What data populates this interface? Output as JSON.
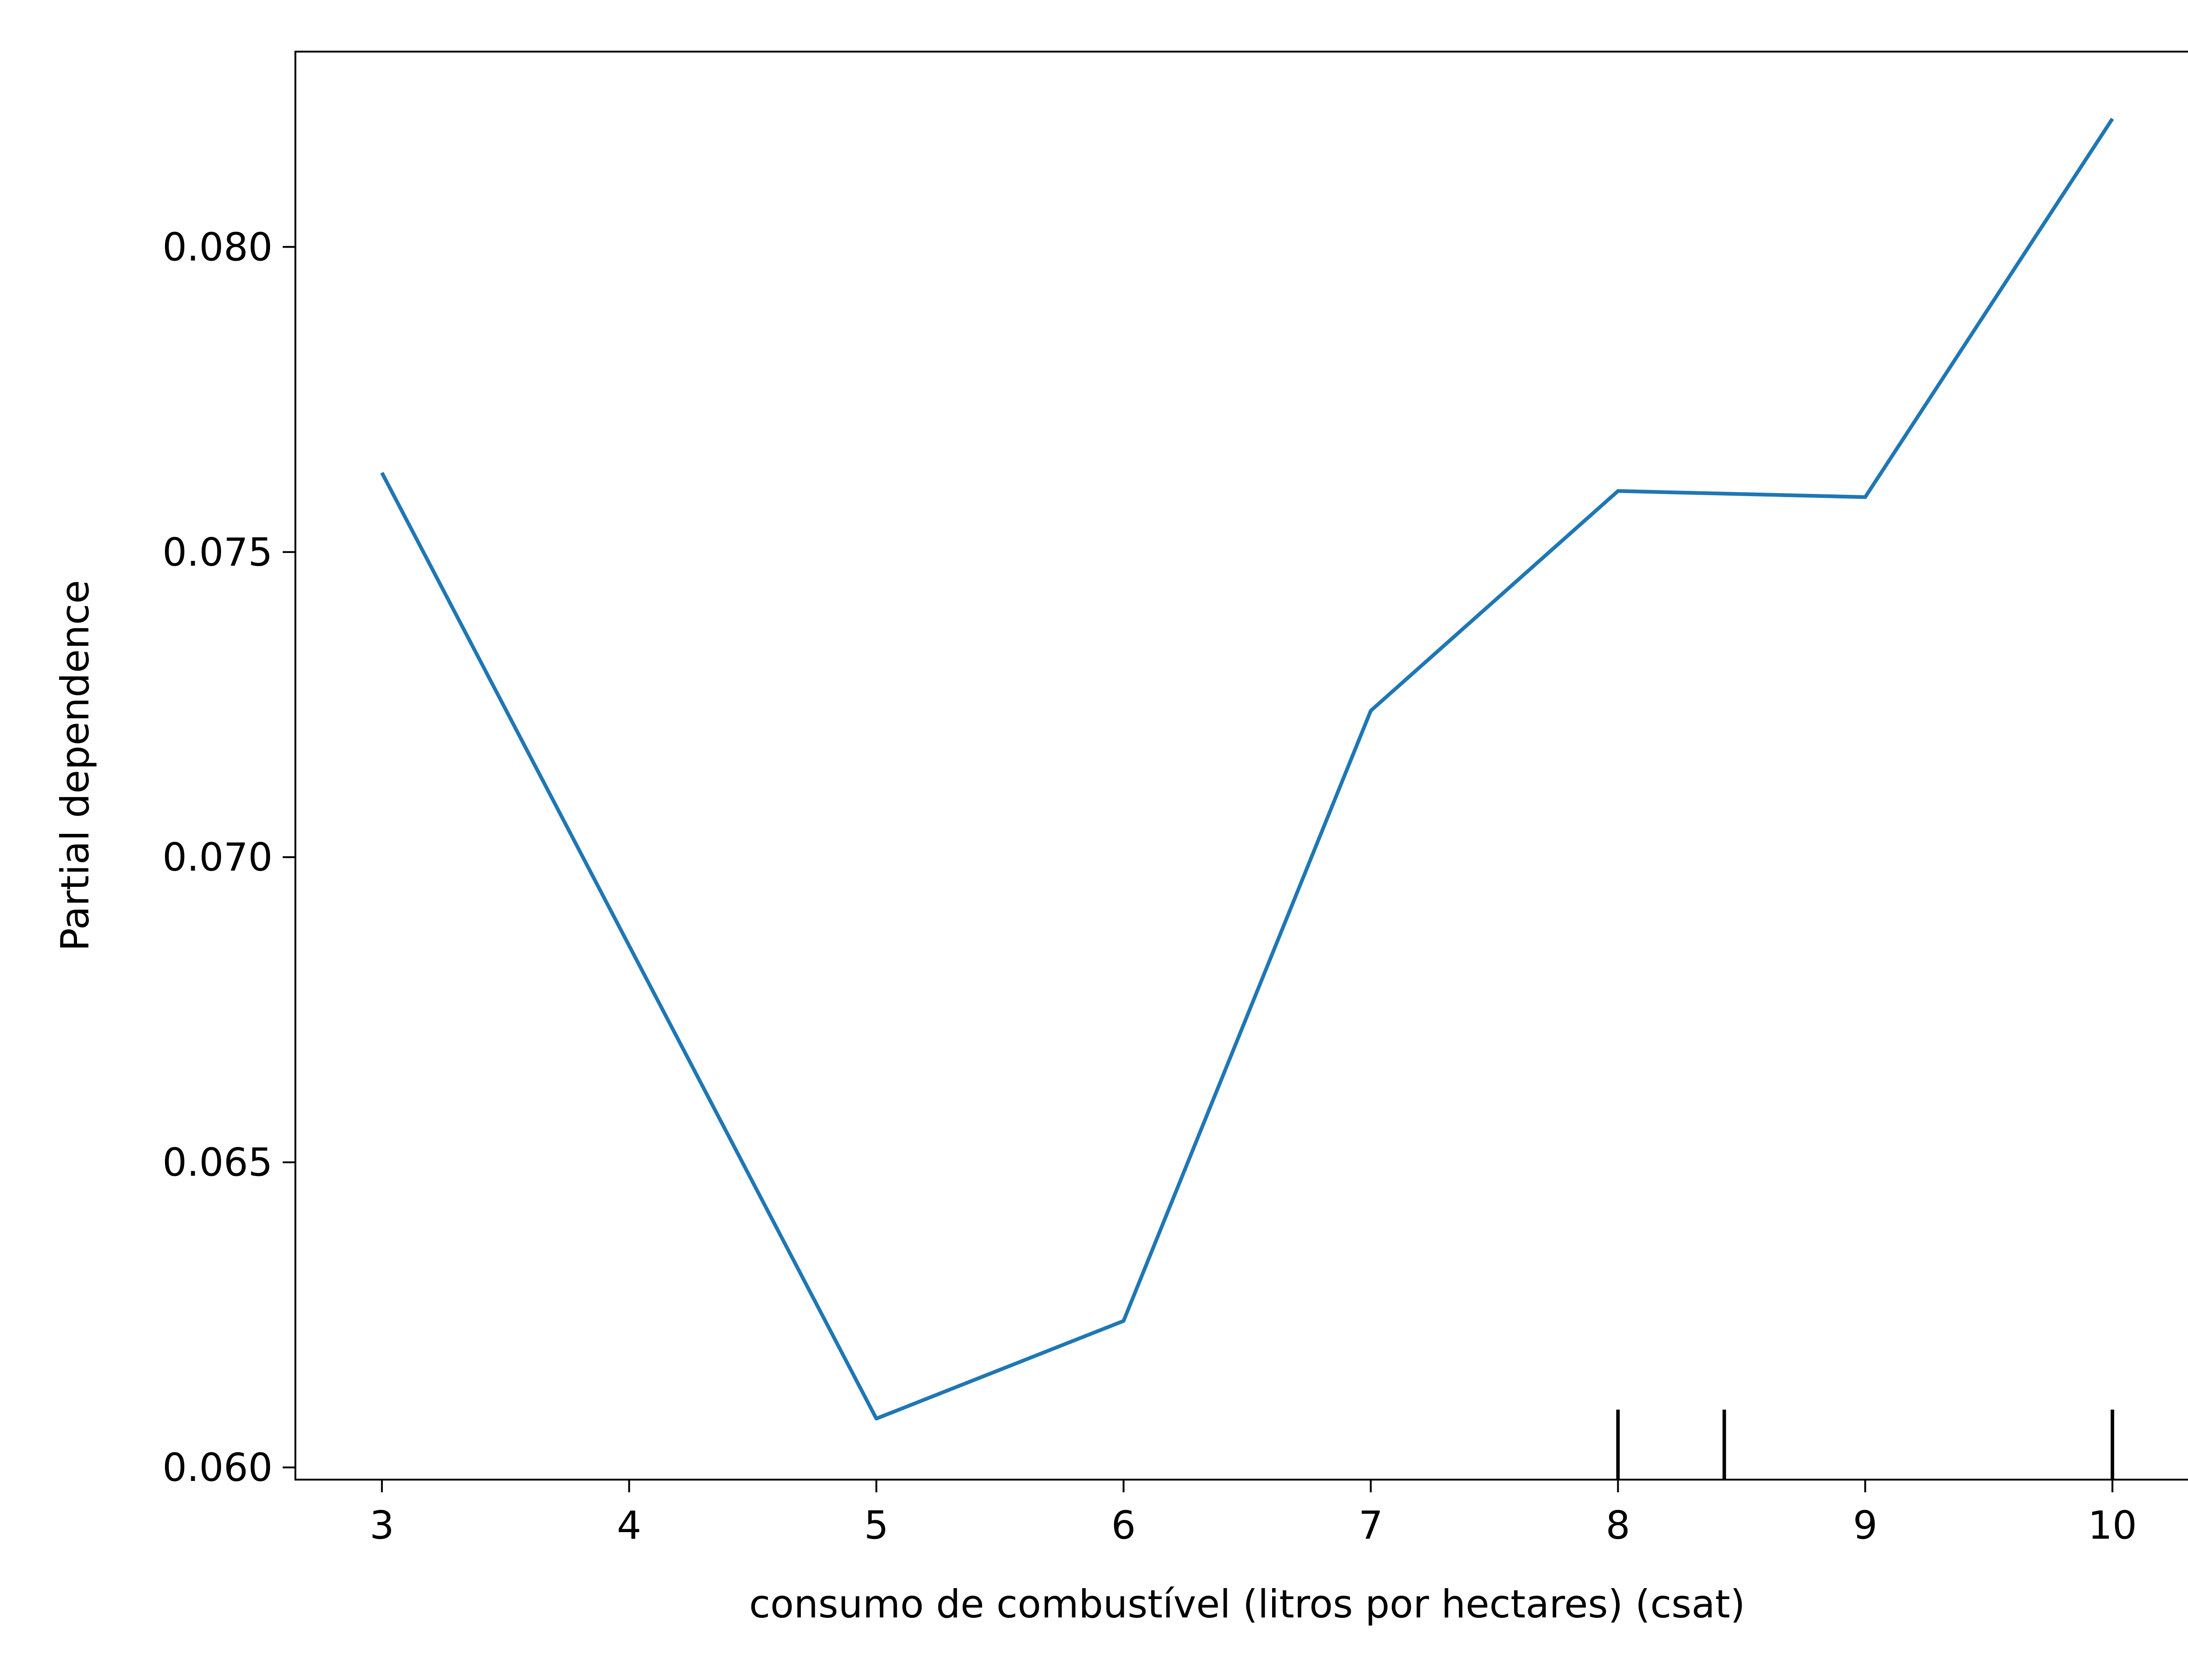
{
  "chart_data": {
    "type": "line",
    "title": "",
    "xlabel": "consumo de combustível (litros por hectares) (csat)",
    "ylabel": "Partial dependence",
    "xlim": [
      2.65,
      10.35
    ],
    "ylim": [
      0.0598,
      0.0832
    ],
    "xticks": [
      3,
      4,
      5,
      6,
      7,
      8,
      9,
      10
    ],
    "xtick_labels": [
      "3",
      "4",
      "5",
      "6",
      "7",
      "8",
      "9",
      "10"
    ],
    "yticks": [
      0.06,
      0.065,
      0.07,
      0.075,
      0.08
    ],
    "ytick_labels": [
      "0.060",
      "0.065",
      "0.070",
      "0.075",
      "0.080"
    ],
    "grid": false,
    "legend": "none",
    "series": [
      {
        "color": "#1f77b4",
        "x": [
          3,
          5,
          6,
          7,
          8,
          9,
          10
        ],
        "y": [
          0.0763,
          0.0608,
          0.0624,
          0.0724,
          0.076,
          0.0759,
          0.0821
        ]
      }
    ],
    "rug_deciles": [
      8,
      8.43,
      10
    ]
  }
}
